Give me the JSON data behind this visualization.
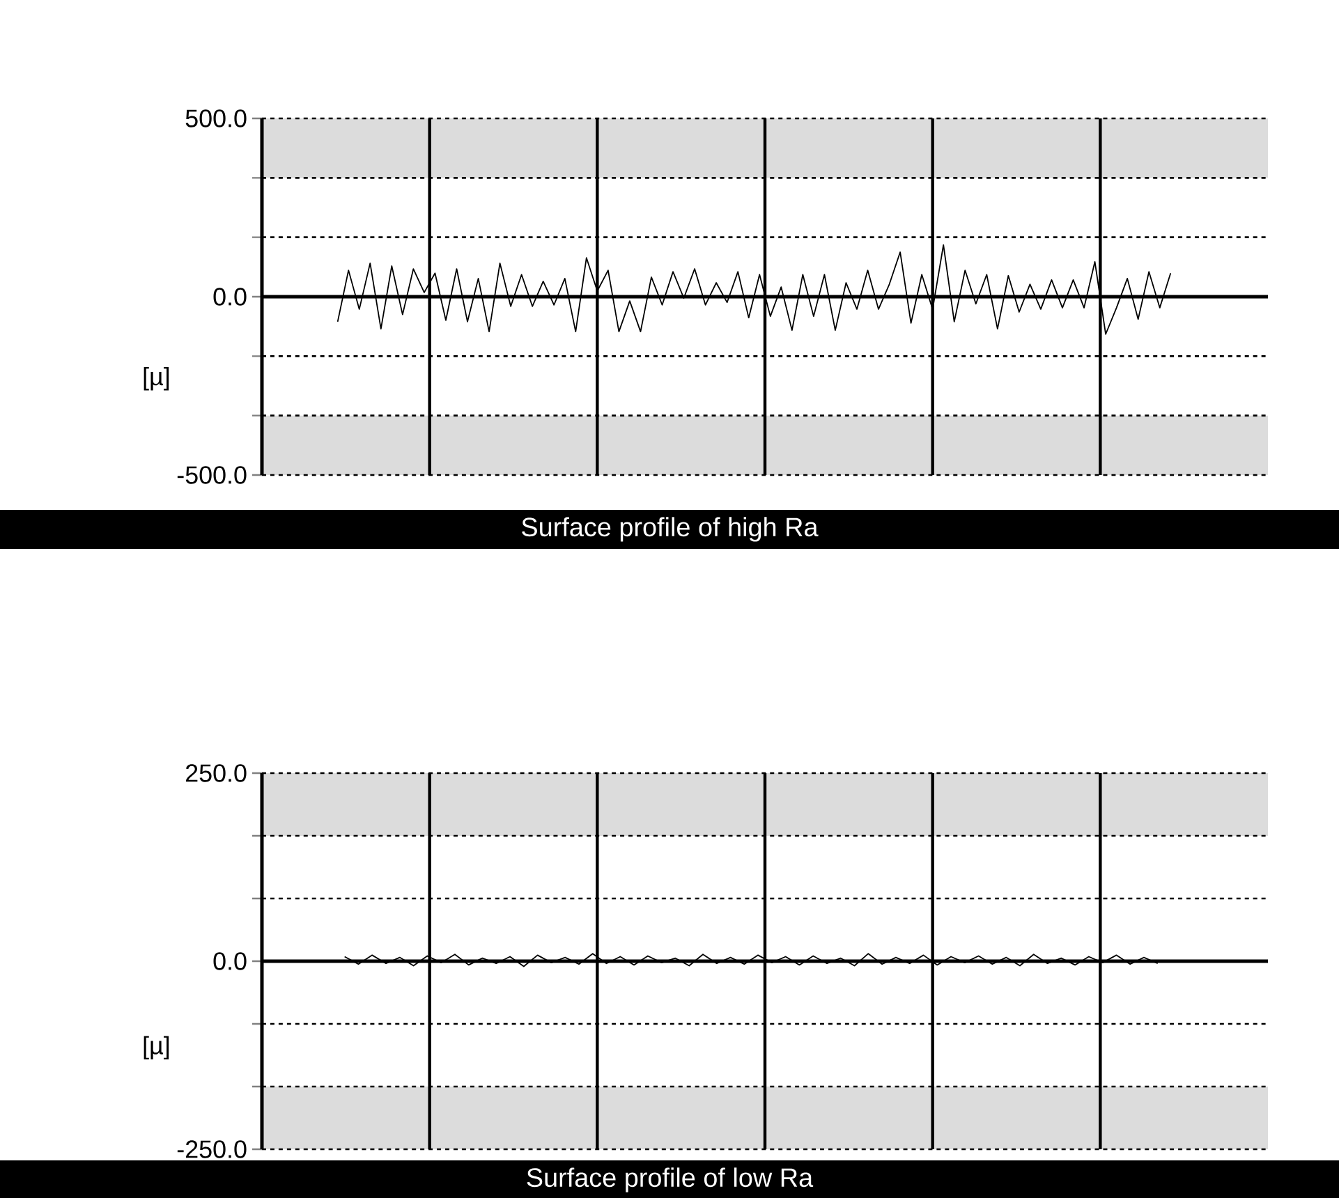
{
  "chart_data": [
    {
      "type": "line",
      "xlabel": "Surface profile of high Ra",
      "ylabel": "[µ]",
      "categories": [
        null,
        null,
        null,
        null,
        null,
        null,
        null,
        null,
        null,
        null,
        null,
        null,
        null,
        null,
        null,
        null,
        null,
        null,
        null,
        null,
        null,
        null,
        null,
        null,
        null,
        null,
        null,
        null,
        null,
        null,
        null,
        null,
        null,
        null,
        null,
        null,
        null,
        null,
        null,
        null,
        null,
        null,
        null,
        null,
        null,
        null,
        null,
        null,
        null,
        null,
        null,
        null,
        null,
        null,
        null,
        null,
        null,
        null,
        null,
        null,
        null,
        null,
        null,
        null,
        null,
        null,
        null,
        null,
        null,
        null,
        null,
        null,
        null,
        null,
        null,
        null,
        null,
        null,
        null,
        null,
        null,
        null,
        null,
        null,
        null,
        null,
        null,
        null,
        null,
        null,
        null,
        null,
        null,
        null
      ],
      "series": [
        {
          "color": "#000000",
          "values": [
            null,
            null,
            null,
            null,
            null,
            null,
            null,
            -70,
            74,
            -35,
            94,
            -90,
            86,
            -50,
            78,
            12,
            66,
            -66,
            78,
            -70,
            51,
            -98,
            94,
            -27,
            62,
            -27,
            43,
            -23,
            51,
            -98,
            109,
            16,
            74,
            -98,
            -12,
            -98,
            55,
            -23,
            70,
            -4,
            78,
            -23,
            39,
            -16,
            70,
            -59,
            62,
            -55,
            27,
            -94,
            62,
            -55,
            62,
            -94,
            39,
            -35,
            74,
            -35,
            35,
            125,
            -74,
            62,
            -35,
            145,
            -70,
            74,
            -20,
            62,
            -90,
            59,
            -43,
            35,
            -35,
            47,
            -31,
            47,
            -31,
            98,
            -105,
            -31,
            51,
            -63,
            70,
            -31,
            66,
            null,
            null,
            null,
            null,
            null,
            null,
            null,
            null,
            null
          ]
        }
      ],
      "ylim": [
        -500,
        500
      ],
      "yticks": [
        {
          "value": -500,
          "label": "-500.0"
        },
        {
          "value": -333.3,
          "label": null
        },
        {
          "value": -166.7,
          "label": null
        },
        {
          "value": 0,
          "label": "0.0"
        },
        {
          "value": 166.7,
          "label": null
        },
        {
          "value": 333.3,
          "label": null
        },
        {
          "value": 500,
          "label": "500.0"
        }
      ],
      "bands": [
        {
          "axis": "y",
          "from": 333.3,
          "to": 500,
          "color": "#dcdcdc"
        },
        {
          "axis": "y",
          "from": -500,
          "to": -333.3,
          "color": "#dcdcdc"
        }
      ],
      "grid": true,
      "tick_labels": "y"
    },
    {
      "type": "line",
      "xlabel": "Surface profile of low Ra",
      "ylabel": "[µ]",
      "categories": [
        null,
        null,
        null,
        null,
        null,
        null,
        null,
        null,
        null,
        null,
        null,
        null,
        null,
        null,
        null,
        null,
        null,
        null,
        null,
        null,
        null,
        null,
        null,
        null,
        null,
        null,
        null,
        null,
        null,
        null,
        null,
        null,
        null,
        null,
        null,
        null,
        null,
        null,
        null,
        null,
        null,
        null,
        null,
        null,
        null,
        null,
        null,
        null,
        null,
        null,
        null,
        null,
        null,
        null,
        null,
        null,
        null,
        null,
        null,
        null,
        null,
        null,
        null,
        null,
        null,
        null,
        null,
        null,
        null,
        null,
        null,
        null,
        null,
        null
      ],
      "series": [
        {
          "color": "#000000",
          "values": [
            null,
            null,
            null,
            null,
            null,
            null,
            6,
            -4,
            8,
            -3,
            5,
            -6,
            7,
            -2,
            9,
            -5,
            4,
            -3,
            6,
            -7,
            8,
            -2,
            5,
            -4,
            10,
            -3,
            6,
            -5,
            7,
            -2,
            4,
            -6,
            9,
            -3,
            5,
            -4,
            8,
            -2,
            6,
            -5,
            7,
            -3,
            4,
            -6,
            10,
            -4,
            5,
            -3,
            8,
            -5,
            6,
            -2,
            7,
            -4,
            5,
            -6,
            9,
            -3,
            4,
            -5,
            6,
            -2,
            8,
            -4,
            5,
            -3,
            null,
            null,
            null,
            null,
            null,
            null,
            null,
            null
          ]
        }
      ],
      "ylim": [
        -250,
        250
      ],
      "yticks": [
        {
          "value": -250,
          "label": "-250.0"
        },
        {
          "value": -166.7,
          "label": null
        },
        {
          "value": -83.3,
          "label": null
        },
        {
          "value": 0,
          "label": "0.0"
        },
        {
          "value": 83.3,
          "label": null
        },
        {
          "value": 166.7,
          "label": null
        },
        {
          "value": 250,
          "label": "250.0"
        }
      ],
      "bands": [
        {
          "axis": "y",
          "from": 166.7,
          "to": 250,
          "color": "#dcdcdc"
        },
        {
          "axis": "y",
          "from": -250,
          "to": -166.7,
          "color": "#dcdcdc"
        }
      ],
      "grid": true,
      "tick_labels": "y"
    }
  ]
}
